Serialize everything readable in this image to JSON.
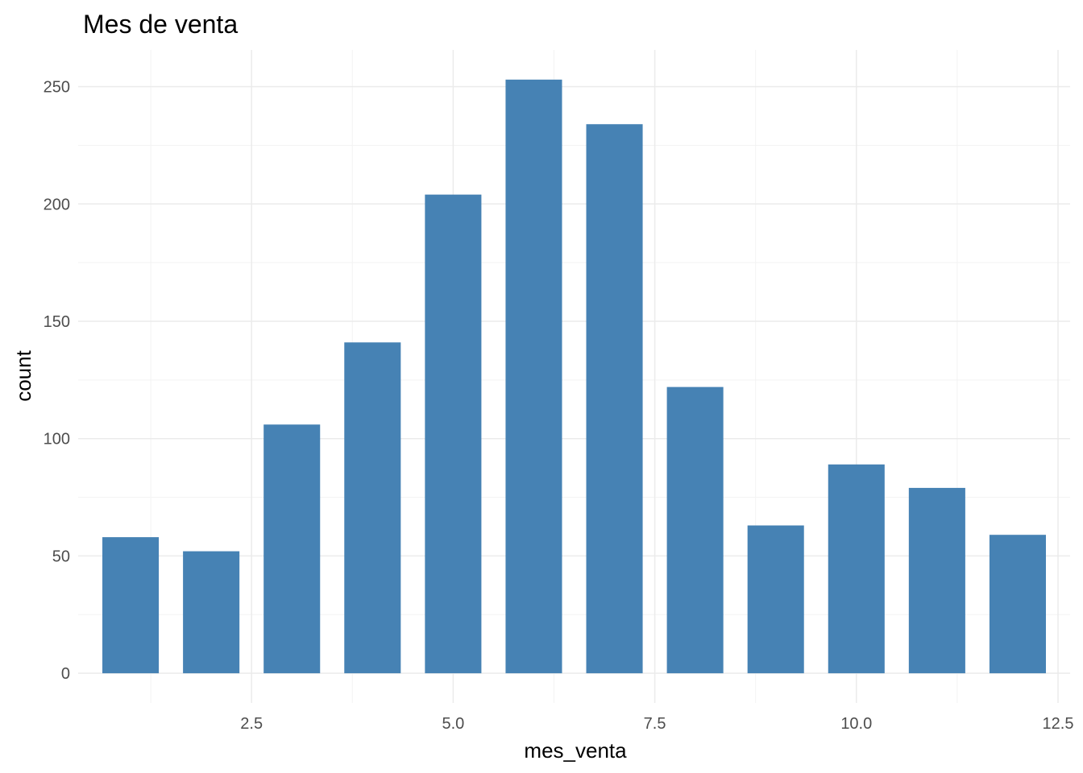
{
  "chart_data": {
    "type": "bar",
    "title": "Mes de venta",
    "xlabel": "mes_venta",
    "ylabel": "count",
    "x": [
      1,
      2,
      3,
      4,
      5,
      6,
      7,
      8,
      9,
      10,
      11,
      12
    ],
    "values": [
      58,
      52,
      106,
      141,
      204,
      253,
      234,
      122,
      63,
      89,
      79,
      59
    ],
    "xlim": [
      0.35,
      12.65
    ],
    "ylim": [
      -12.65,
      265.65
    ],
    "x_ticks": [
      2.5,
      5.0,
      7.5,
      10.0,
      12.5
    ],
    "x_tick_labels": [
      "2.5",
      "5.0",
      "7.5",
      "10.0",
      "12.5"
    ],
    "y_ticks": [
      0,
      50,
      100,
      150,
      200,
      250
    ],
    "y_tick_labels": [
      "0",
      "50",
      "100",
      "150",
      "200",
      "250"
    ],
    "bar_color": "#4682b4",
    "grid": true,
    "legend": "none"
  }
}
